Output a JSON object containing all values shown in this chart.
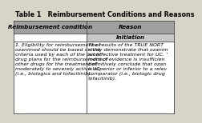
{
  "title": "Table 1   Reimbursement Conditions and Reasons",
  "col_headers": [
    "Reimbursement condition",
    "Reason"
  ],
  "subheader": "Initiation",
  "col1_lines": [
    "1. Eligibility for reimbursement of",
    "ozanimod should be based on the",
    "criteria used by each of the public",
    "drug plans for the reimbursement of",
    "other drugs for the treatment of",
    "moderately to severely active UC",
    "(i.e., biologics and tofacitinib)."
  ],
  "col2_lines": [
    "The results of the TRUE NORT",
    "study demonstrate that ozanim",
    "an effective treatment for UC. ’",
    "indirect evidence is insufficien",
    "definitively conclude that ozan",
    "is superior or inferior to a relev",
    "comparator (i.e., biologic drug",
    "tofacitinib)."
  ],
  "outer_bg": "#d8d4c8",
  "table_bg": "#f0ede6",
  "header_bg": "#a0a0a0",
  "subheader_bg": "#c8c8c8",
  "cell_bg": "#ffffff",
  "border_color": "#444444",
  "title_fontsize": 5.8,
  "header_fontsize": 5.2,
  "subheader_fontsize": 5.0,
  "cell_fontsize": 4.5,
  "col_split": 0.455
}
